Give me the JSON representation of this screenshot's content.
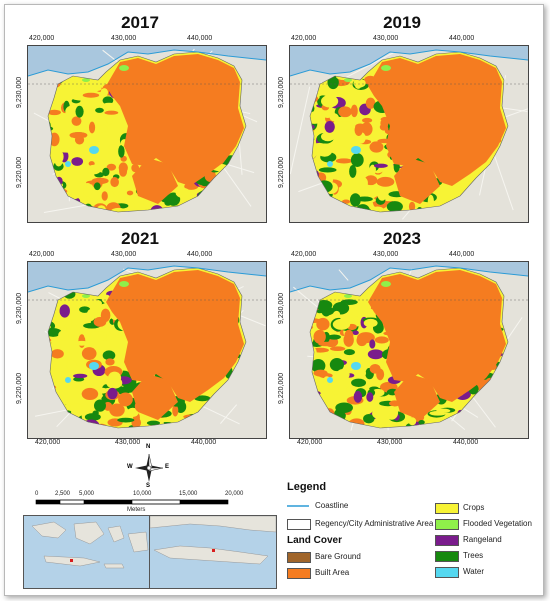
{
  "panels": [
    {
      "year": "2017"
    },
    {
      "year": "2019"
    },
    {
      "year": "2021"
    },
    {
      "year": "2023"
    }
  ],
  "x_ticks": [
    "420,000",
    "430,000",
    "440,000"
  ],
  "y_ticks": [
    "9,230,000",
    "9,220,000"
  ],
  "north_arrow": {
    "n": "N",
    "s": "S",
    "e": "E",
    "w": "W"
  },
  "scale_bar": {
    "labels": [
      "0",
      "2,500",
      "5,000",
      "10,000",
      "15,000",
      "20,000"
    ],
    "unit": "Meters"
  },
  "legend": {
    "title": "Legend",
    "coastline": "Coastline",
    "admin_area": "Regency/City Administrative Area",
    "land_cover_title": "Land Cover",
    "classes": [
      {
        "label": "Bare Ground",
        "color": "#a0652a"
      },
      {
        "label": "Built Area",
        "color": "#f57c20"
      },
      {
        "label": "Crops",
        "color": "#f7f335"
      },
      {
        "label": "Flooded Vegetation",
        "color": "#8ff04a"
      },
      {
        "label": "Rangeland",
        "color": "#7a1c8c"
      },
      {
        "label": "Trees",
        "color": "#17890f"
      },
      {
        "label": "Water",
        "color": "#55d8f0"
      }
    ]
  },
  "colors": {
    "sea": "#a9c7de",
    "land": "#e4e2da",
    "coastline": "#2b9bd6"
  }
}
